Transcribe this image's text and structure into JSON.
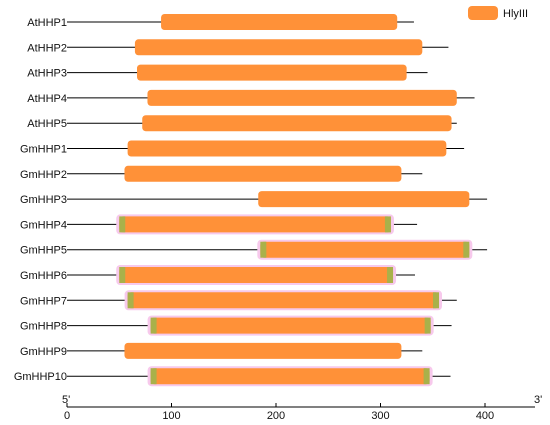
{
  "legend": {
    "label": "HlyIII",
    "color": "#FF9138"
  },
  "colors": {
    "domain": "#FF9138",
    "domain_edge": "#A9B14A",
    "shadow": "#F7C9EC",
    "line": "#000000"
  },
  "axis": {
    "start_label": "5'",
    "end_label": "3'",
    "ticks": [
      "0",
      "100",
      "200",
      "300",
      "400"
    ]
  },
  "chart_data": {
    "type": "bar",
    "xlim": [
      0,
      450
    ],
    "proteins": [
      {
        "name": "AtHHP1",
        "length": 332,
        "domain": [
          90,
          316
        ],
        "highlight": false
      },
      {
        "name": "AtHHP2",
        "length": 365,
        "domain": [
          65,
          340
        ],
        "highlight": false
      },
      {
        "name": "AtHHP3",
        "length": 345,
        "domain": [
          67,
          325
        ],
        "highlight": false
      },
      {
        "name": "AtHHP4",
        "length": 390,
        "domain": [
          77,
          373
        ],
        "highlight": false
      },
      {
        "name": "AtHHP5",
        "length": 373,
        "domain": [
          72,
          368
        ],
        "highlight": false
      },
      {
        "name": "GmHHP1",
        "length": 380,
        "domain": [
          58,
          363
        ],
        "highlight": false
      },
      {
        "name": "GmHHP2",
        "length": 340,
        "domain": [
          55,
          320
        ],
        "highlight": false
      },
      {
        "name": "GmHHP3",
        "length": 402,
        "domain": [
          183,
          385
        ],
        "highlight": false
      },
      {
        "name": "GmHHP4",
        "length": 335,
        "domain": [
          50,
          310
        ],
        "highlight": true
      },
      {
        "name": "GmHHP5",
        "length": 402,
        "domain": [
          185,
          385
        ],
        "highlight": true
      },
      {
        "name": "GmHHP6",
        "length": 333,
        "domain": [
          50,
          312
        ],
        "highlight": true
      },
      {
        "name": "GmHHP7",
        "length": 373,
        "domain": [
          58,
          356
        ],
        "highlight": true
      },
      {
        "name": "GmHHP8",
        "length": 368,
        "domain": [
          80,
          348
        ],
        "highlight": true
      },
      {
        "name": "GmHHP9",
        "length": 340,
        "domain": [
          55,
          320
        ],
        "highlight": false
      },
      {
        "name": "GmHHP10",
        "length": 367,
        "domain": [
          80,
          347
        ],
        "highlight": true
      }
    ]
  }
}
